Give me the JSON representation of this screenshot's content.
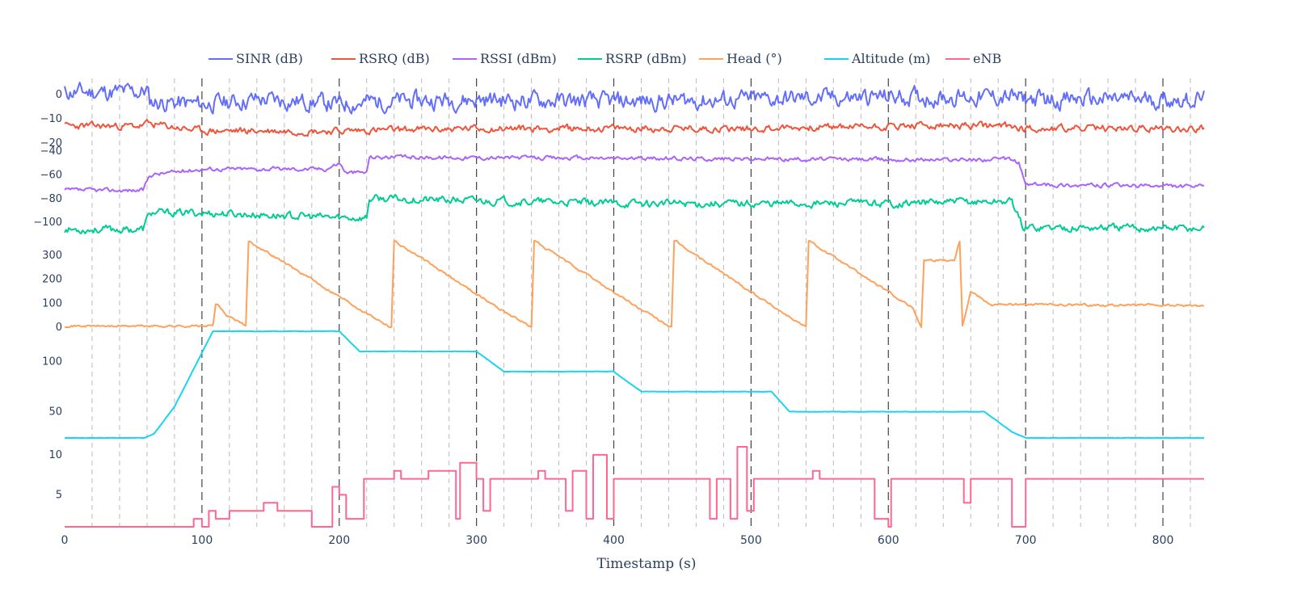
{
  "chart_data": {
    "type": "line",
    "xlabel": "Timestamp (s)",
    "xlim": [
      0,
      830
    ],
    "x_ticks": [
      0,
      100,
      200,
      300,
      400,
      500,
      600,
      700,
      800
    ],
    "x_tick_labels": [
      "0",
      "100",
      "200",
      "300",
      "400",
      "500",
      "600",
      "700",
      "800"
    ],
    "minor_grid_step": 20,
    "major_grid_step": 100,
    "legend_position": "top",
    "series": [
      {
        "key": "sinr",
        "name": "SINR (dB)",
        "color": "#636efa",
        "panel": 0,
        "noise": 3.0,
        "seed": 11,
        "points": [
          [
            0,
            1
          ],
          [
            55,
            1
          ],
          [
            60,
            2
          ],
          [
            62,
            -3
          ],
          [
            100,
            -4
          ],
          [
            140,
            -2
          ],
          [
            180,
            -3
          ],
          [
            200,
            -4
          ],
          [
            220,
            -3
          ],
          [
            300,
            -2
          ],
          [
            400,
            -3
          ],
          [
            500,
            -2
          ],
          [
            600,
            -1
          ],
          [
            690,
            -1
          ],
          [
            698,
            -2
          ],
          [
            830,
            -2
          ]
        ]
      },
      {
        "key": "rsrq",
        "name": "RSRQ (dB)",
        "color": "#ef553b",
        "panel": 0,
        "noise": 1.2,
        "seed": 23,
        "points": [
          [
            0,
            -13
          ],
          [
            55,
            -13
          ],
          [
            60,
            -12
          ],
          [
            100,
            -15
          ],
          [
            200,
            -15
          ],
          [
            300,
            -14
          ],
          [
            400,
            -14
          ],
          [
            500,
            -14
          ],
          [
            600,
            -13
          ],
          [
            690,
            -13
          ],
          [
            700,
            -14
          ],
          [
            830,
            -14
          ]
        ]
      },
      {
        "key": "rssi",
        "name": "RSSI (dBm)",
        "color": "#ab63fa",
        "panel": 1,
        "noise": 1.4,
        "seed": 37,
        "points": [
          [
            0,
            -73
          ],
          [
            57,
            -73
          ],
          [
            62,
            -60
          ],
          [
            100,
            -55
          ],
          [
            190,
            -55
          ],
          [
            200,
            -50
          ],
          [
            205,
            -58
          ],
          [
            220,
            -58
          ],
          [
            222,
            -45
          ],
          [
            400,
            -46
          ],
          [
            600,
            -47
          ],
          [
            690,
            -47
          ],
          [
            695,
            -50
          ],
          [
            700,
            -68
          ],
          [
            830,
            -70
          ]
        ]
      },
      {
        "key": "rsrp",
        "name": "RSRP (dBm)",
        "color": "#00cc96",
        "panel": 1,
        "noise": 2.6,
        "seed": 53,
        "points": [
          [
            0,
            -106
          ],
          [
            57,
            -106
          ],
          [
            62,
            -92
          ],
          [
            100,
            -92
          ],
          [
            200,
            -96
          ],
          [
            220,
            -96
          ],
          [
            222,
            -80
          ],
          [
            400,
            -84
          ],
          [
            600,
            -84
          ],
          [
            690,
            -82
          ],
          [
            698,
            -104
          ],
          [
            830,
            -105
          ]
        ]
      },
      {
        "key": "head",
        "name": "Head (°)",
        "color": "#ffa15a",
        "panel": 2,
        "noise": 4.0,
        "seed": 71,
        "points": [
          [
            0,
            5
          ],
          [
            108,
            5
          ],
          [
            110,
            100
          ],
          [
            118,
            50
          ],
          [
            132,
            5
          ],
          [
            134,
            360
          ],
          [
            214,
            80
          ],
          [
            238,
            0
          ],
          [
            240,
            360
          ],
          [
            316,
            80
          ],
          [
            340,
            0
          ],
          [
            342,
            360
          ],
          [
            418,
            80
          ],
          [
            442,
            0
          ],
          [
            444,
            360
          ],
          [
            518,
            80
          ],
          [
            540,
            0
          ],
          [
            542,
            360
          ],
          [
            618,
            80
          ],
          [
            624,
            0
          ],
          [
            626,
            280
          ],
          [
            648,
            280
          ],
          [
            652,
            360
          ],
          [
            654,
            10
          ],
          [
            660,
            150
          ],
          [
            675,
            95
          ],
          [
            830,
            90
          ]
        ]
      },
      {
        "key": "altitude",
        "name": "Altitude (m)",
        "color": "#19d3f3",
        "panel": 3,
        "noise": 0.15,
        "seed": 89,
        "points": [
          [
            0,
            24
          ],
          [
            58,
            24
          ],
          [
            65,
            28
          ],
          [
            80,
            55
          ],
          [
            108,
            130
          ],
          [
            200,
            130
          ],
          [
            215,
            110
          ],
          [
            300,
            110
          ],
          [
            320,
            90
          ],
          [
            400,
            90
          ],
          [
            420,
            70
          ],
          [
            515,
            70
          ],
          [
            528,
            50
          ],
          [
            670,
            50
          ],
          [
            690,
            30
          ],
          [
            700,
            24
          ],
          [
            830,
            24
          ]
        ]
      },
      {
        "key": "enb",
        "name": "eNB",
        "color": "#ff6692",
        "panel": 4,
        "noise": 0,
        "seed": 0,
        "step": true,
        "points": [
          [
            0,
            1
          ],
          [
            92,
            1
          ],
          [
            94,
            2
          ],
          [
            100,
            1
          ],
          [
            105,
            3
          ],
          [
            110,
            2
          ],
          [
            120,
            3
          ],
          [
            145,
            4
          ],
          [
            155,
            3
          ],
          [
            180,
            1
          ],
          [
            195,
            6
          ],
          [
            200,
            5
          ],
          [
            205,
            2
          ],
          [
            218,
            7
          ],
          [
            240,
            8
          ],
          [
            245,
            7
          ],
          [
            265,
            8
          ],
          [
            285,
            2
          ],
          [
            288,
            9
          ],
          [
            300,
            7
          ],
          [
            305,
            3
          ],
          [
            310,
            7
          ],
          [
            345,
            8
          ],
          [
            350,
            7
          ],
          [
            365,
            3
          ],
          [
            370,
            8
          ],
          [
            380,
            2
          ],
          [
            385,
            10
          ],
          [
            395,
            2
          ],
          [
            400,
            7
          ],
          [
            470,
            2
          ],
          [
            475,
            7
          ],
          [
            485,
            2
          ],
          [
            490,
            11
          ],
          [
            497,
            3
          ],
          [
            502,
            7
          ],
          [
            545,
            8
          ],
          [
            550,
            7
          ],
          [
            590,
            2
          ],
          [
            600,
            1
          ],
          [
            602,
            7
          ],
          [
            655,
            4
          ],
          [
            660,
            7
          ],
          [
            690,
            1
          ],
          [
            700,
            7
          ],
          [
            830,
            7
          ]
        ]
      }
    ],
    "panels": [
      {
        "ticks": [
          0,
          -10,
          -20
        ],
        "tick_labels": [
          "0",
          "−10",
          "−20"
        ],
        "ylim": [
          -20,
          5
        ]
      },
      {
        "ticks": [
          -40,
          -60,
          -80,
          -100
        ],
        "tick_labels": [
          "−40",
          "−60",
          "−80",
          "−100"
        ],
        "ylim": [
          -108,
          -40
        ]
      },
      {
        "ticks": [
          0,
          100,
          200,
          300
        ],
        "tick_labels": [
          "0",
          "100",
          "200",
          "300"
        ],
        "ylim": [
          0,
          360
        ]
      },
      {
        "ticks": [
          50,
          100
        ],
        "tick_labels": [
          "50",
          "100"
        ],
        "ylim": [
          24,
          130
        ]
      },
      {
        "ticks": [
          5,
          10
        ],
        "tick_labels": [
          "5",
          "10"
        ],
        "ylim": [
          1,
          11
        ]
      }
    ]
  }
}
